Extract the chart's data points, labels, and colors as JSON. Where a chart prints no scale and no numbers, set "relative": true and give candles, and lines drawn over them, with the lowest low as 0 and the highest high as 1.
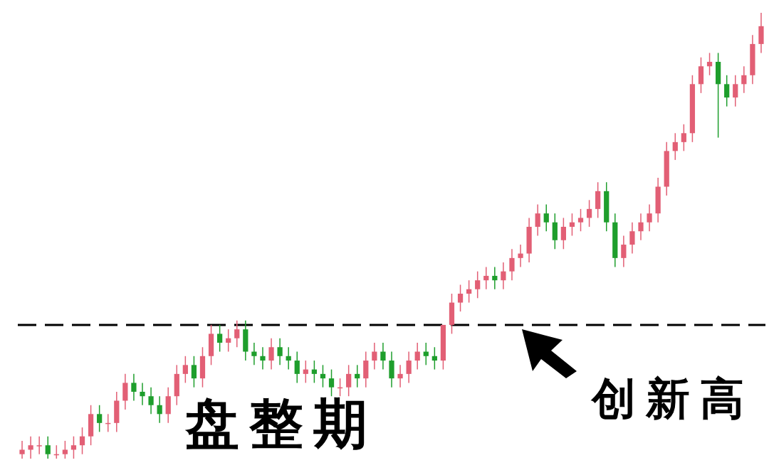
{
  "chart_data": {
    "type": "candlestick",
    "relative": true,
    "categories": [
      null,
      null,
      null,
      null,
      null,
      null,
      null,
      null,
      null,
      null,
      null,
      null,
      null,
      null,
      null,
      null,
      null,
      null,
      null,
      null,
      null,
      null,
      null,
      null,
      null,
      null,
      null,
      null,
      null,
      null,
      null,
      null,
      null,
      null,
      null,
      null,
      null,
      null,
      null,
      null,
      null,
      null,
      null,
      null,
      null,
      null,
      null,
      null,
      null,
      null,
      null,
      null,
      null,
      null,
      null,
      null,
      null,
      null,
      null,
      null,
      null,
      null,
      null,
      null,
      null,
      null,
      null,
      null,
      null,
      null,
      null,
      null,
      null,
      null,
      null,
      null,
      null,
      null,
      null,
      null,
      null,
      null,
      null,
      null,
      null,
      null,
      null
    ],
    "ohlc": [
      [
        0.01,
        0.04,
        0,
        0.02
      ],
      [
        0.02,
        0.05,
        0,
        0.03
      ],
      [
        0.03,
        0.05,
        0.01,
        0.03
      ],
      [
        0.03,
        0.05,
        0,
        0.01
      ],
      [
        0.01,
        0.03,
        0,
        0.01
      ],
      [
        0.01,
        0.04,
        0,
        0.02
      ],
      [
        0.02,
        0.05,
        0,
        0.03
      ],
      [
        0.03,
        0.07,
        0.01,
        0.05
      ],
      [
        0.05,
        0.12,
        0.03,
        0.1
      ],
      [
        0.1,
        0.12,
        0.06,
        0.08
      ],
      [
        0.08,
        0.1,
        0.06,
        0.08
      ],
      [
        0.08,
        0.15,
        0.06,
        0.13
      ],
      [
        0.13,
        0.19,
        0.11,
        0.17
      ],
      [
        0.17,
        0.19,
        0.13,
        0.15
      ],
      [
        0.15,
        0.17,
        0.12,
        0.14
      ],
      [
        0.14,
        0.16,
        0.1,
        0.12
      ],
      [
        0.12,
        0.14,
        0.08,
        0.1
      ],
      [
        0.1,
        0.16,
        0.08,
        0.14
      ],
      [
        0.14,
        0.21,
        0.12,
        0.19
      ],
      [
        0.19,
        0.23,
        0.17,
        0.21
      ],
      [
        0.21,
        0.23,
        0.16,
        0.18
      ],
      [
        0.18,
        0.25,
        0.16,
        0.23
      ],
      [
        0.23,
        0.3,
        0.21,
        0.28
      ],
      [
        0.28,
        0.3,
        0.24,
        0.26
      ],
      [
        0.26,
        0.29,
        0.24,
        0.27
      ],
      [
        0.27,
        0.31,
        0.25,
        0.29
      ],
      [
        0.29,
        0.31,
        0.22,
        0.24
      ],
      [
        0.24,
        0.26,
        0.21,
        0.23
      ],
      [
        0.23,
        0.25,
        0.2,
        0.22
      ],
      [
        0.22,
        0.27,
        0.2,
        0.25
      ],
      [
        0.25,
        0.27,
        0.21,
        0.23
      ],
      [
        0.23,
        0.25,
        0.2,
        0.22
      ],
      [
        0.22,
        0.24,
        0.17,
        0.19
      ],
      [
        0.19,
        0.22,
        0.17,
        0.2
      ],
      [
        0.2,
        0.22,
        0.17,
        0.19
      ],
      [
        0.19,
        0.21,
        0.16,
        0.18
      ],
      [
        0.18,
        0.2,
        0.14,
        0.16
      ],
      [
        0.16,
        0.18,
        0.14,
        0.16
      ],
      [
        0.16,
        0.21,
        0.14,
        0.19
      ],
      [
        0.19,
        0.21,
        0.16,
        0.18
      ],
      [
        0.18,
        0.24,
        0.16,
        0.22
      ],
      [
        0.22,
        0.26,
        0.2,
        0.24
      ],
      [
        0.24,
        0.26,
        0.2,
        0.22
      ],
      [
        0.22,
        0.24,
        0.16,
        0.18
      ],
      [
        0.18,
        0.21,
        0.16,
        0.19
      ],
      [
        0.19,
        0.24,
        0.17,
        0.22
      ],
      [
        0.22,
        0.26,
        0.2,
        0.24
      ],
      [
        0.24,
        0.26,
        0.21,
        0.23
      ],
      [
        0.23,
        0.25,
        0.2,
        0.22
      ],
      [
        0.22,
        0.3,
        0.2,
        0.3
      ],
      [
        0.3,
        0.37,
        0.28,
        0.35
      ],
      [
        0.35,
        0.39,
        0.33,
        0.37
      ],
      [
        0.37,
        0.4,
        0.35,
        0.38
      ],
      [
        0.38,
        0.42,
        0.36,
        0.4
      ],
      [
        0.4,
        0.43,
        0.38,
        0.41
      ],
      [
        0.41,
        0.43,
        0.38,
        0.4
      ],
      [
        0.4,
        0.44,
        0.38,
        0.42
      ],
      [
        0.42,
        0.47,
        0.4,
        0.45
      ],
      [
        0.45,
        0.48,
        0.43,
        0.46
      ],
      [
        0.46,
        0.54,
        0.44,
        0.52
      ],
      [
        0.52,
        0.57,
        0.5,
        0.55
      ],
      [
        0.55,
        0.57,
        0.51,
        0.53
      ],
      [
        0.53,
        0.55,
        0.47,
        0.49
      ],
      [
        0.49,
        0.54,
        0.47,
        0.52
      ],
      [
        0.52,
        0.55,
        0.5,
        0.53
      ],
      [
        0.53,
        0.56,
        0.51,
        0.54
      ],
      [
        0.54,
        0.58,
        0.52,
        0.56
      ],
      [
        0.56,
        0.62,
        0.54,
        0.6
      ],
      [
        0.6,
        0.62,
        0.51,
        0.53
      ],
      [
        0.53,
        0.55,
        0.43,
        0.45
      ],
      [
        0.45,
        0.5,
        0.43,
        0.48
      ],
      [
        0.48,
        0.53,
        0.46,
        0.51
      ],
      [
        0.51,
        0.55,
        0.49,
        0.53
      ],
      [
        0.53,
        0.57,
        0.51,
        0.55
      ],
      [
        0.55,
        0.63,
        0.53,
        0.61
      ],
      [
        0.61,
        0.71,
        0.59,
        0.69
      ],
      [
        0.69,
        0.73,
        0.67,
        0.71
      ],
      [
        0.71,
        0.75,
        0.69,
        0.73
      ],
      [
        0.73,
        0.86,
        0.71,
        0.84
      ],
      [
        0.84,
        0.9,
        0.82,
        0.88
      ],
      [
        0.88,
        0.91,
        0.86,
        0.89
      ],
      [
        0.89,
        0.91,
        0.72,
        0.84
      ],
      [
        0.84,
        0.86,
        0.79,
        0.81
      ],
      [
        0.81,
        0.86,
        0.79,
        0.84
      ],
      [
        0.84,
        0.88,
        0.82,
        0.86
      ],
      [
        0.86,
        0.95,
        0.84,
        0.93
      ],
      [
        0.93,
        1.0,
        0.91,
        0.97
      ]
    ],
    "ref_lines": [
      {
        "axis": "y",
        "value": 0.3,
        "color": "#000000",
        "line_style": "dashed"
      }
    ],
    "annotations": [
      "盘整期",
      "创新高"
    ]
  }
}
